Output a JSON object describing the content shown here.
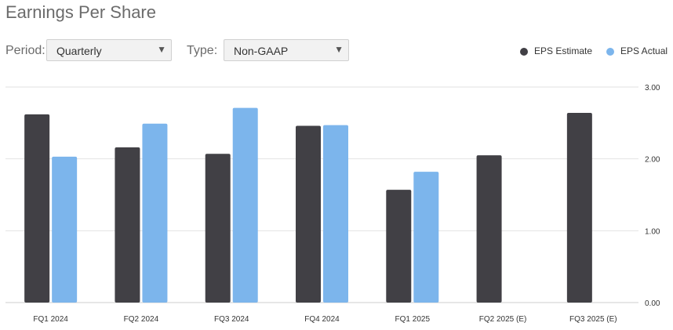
{
  "page": {
    "title": "Earnings Per Share"
  },
  "controls": {
    "period_label": "Period:",
    "period_value": "Quarterly",
    "type_label": "Type:",
    "type_value": "Non-GAAP",
    "caret_icon": "caret-down-icon"
  },
  "legend": {
    "estimate_label": "EPS Estimate",
    "actual_label": "EPS Actual"
  },
  "colors": {
    "estimate": "#414045",
    "actual": "#7cb5ec",
    "grid": "#e2e2e2"
  },
  "chart_data": {
    "type": "bar",
    "categories": [
      "FQ1 2024",
      "FQ2 2024",
      "FQ3 2024",
      "FQ4 2024",
      "FQ1 2025",
      "FQ2 2025 (E)",
      "FQ3 2025 (E)"
    ],
    "series": [
      {
        "name": "EPS Estimate",
        "values": [
          2.62,
          2.16,
          2.07,
          2.46,
          1.57,
          2.05,
          2.64
        ]
      },
      {
        "name": "EPS Actual",
        "values": [
          2.03,
          2.49,
          2.71,
          2.47,
          1.82,
          null,
          null
        ]
      }
    ],
    "ylim": [
      0,
      3
    ],
    "yticks": [
      "0.00",
      "1.00",
      "2.00",
      "3.00"
    ],
    "ytick_values": [
      0,
      1,
      2,
      3
    ],
    "grid": true,
    "legend_position": "top-right"
  }
}
